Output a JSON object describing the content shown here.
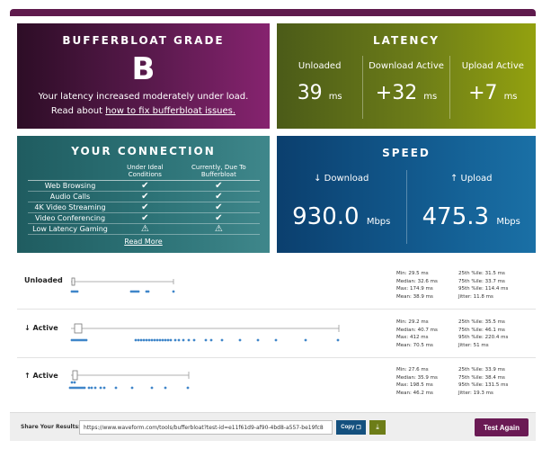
{
  "grade": {
    "title": "BUFFERBLOAT GRADE",
    "letter": "B",
    "description": "Your latency increased moderately under load.",
    "read_prefix": "Read about ",
    "read_link": "how to fix bufferbloat issues."
  },
  "latency": {
    "title": "LATENCY",
    "columns": [
      {
        "label": "Unloaded",
        "value": "39",
        "unit": "ms"
      },
      {
        "label": "Download Active",
        "value": "+32",
        "unit": "ms"
      },
      {
        "label": "Upload Active",
        "value": "+7",
        "unit": "ms"
      }
    ]
  },
  "connection": {
    "title": "YOUR CONNECTION",
    "col_ideal": "Under Ideal Conditions",
    "col_current": "Currently, Due To Bufferbloat",
    "rows": [
      {
        "feature": "Web Browsing",
        "ideal": "✔",
        "current": "✔"
      },
      {
        "feature": "Audio Calls",
        "ideal": "✔",
        "current": "✔"
      },
      {
        "feature": "4K Video Streaming",
        "ideal": "✔",
        "current": "✔"
      },
      {
        "feature": "Video Conferencing",
        "ideal": "✔",
        "current": "✔"
      },
      {
        "feature": "Low Latency Gaming",
        "ideal": "⚠",
        "current": "⚠"
      }
    ],
    "read_more": "Read More"
  },
  "speed": {
    "title": "SPEED",
    "download_label": "↓ Download",
    "download_value": "930.0",
    "upload_label": "↑ Upload",
    "upload_value": "475.3",
    "unit": "Mbps"
  },
  "plots": [
    {
      "label": "Unloaded",
      "stats_left": [
        "Min: 29.5 ms",
        "Median: 32.6 ms",
        "Max: 174.9 ms",
        "Mean: 38.9 ms"
      ],
      "stats_right": [
        "25th %ile: 31.5 ms",
        "75th %ile: 33.7 ms",
        "95th %ile: 114.4 ms",
        "Jitter: 11.8 ms"
      ]
    },
    {
      "label": "↓ Active",
      "stats_left": [
        "Min: 29.2 ms",
        "Median: 40.7 ms",
        "Max: 412 ms",
        "Mean: 70.5 ms"
      ],
      "stats_right": [
        "25th %ile: 35.5 ms",
        "75th %ile: 46.1 ms",
        "95th %ile: 220.4 ms",
        "Jitter: 51 ms"
      ]
    },
    {
      "label": "↑ Active",
      "stats_left": [
        "Min: 27.6 ms",
        "Median: 35.9 ms",
        "Max: 198.5 ms",
        "Mean: 46.2 ms"
      ],
      "stats_right": [
        "25th %ile: 33.9 ms",
        "75th %ile: 38.4 ms",
        "95th %ile: 131.5 ms",
        "Jitter: 19.3 ms"
      ]
    }
  ],
  "footer": {
    "share_label": "Share Your Results:",
    "url": "https://www.waveform.com/tools/bufferbloat?test-id=e11f61d9-af90-4bd8-a557-be19fc8",
    "copy_label": "Copy",
    "test_again_label": "Test Again"
  },
  "colors": {
    "grade": "#5b1a4e",
    "latency": "#6d7d18",
    "connection": "#2d7377",
    "speed": "#125a8e",
    "dots": "#3f86c9"
  }
}
